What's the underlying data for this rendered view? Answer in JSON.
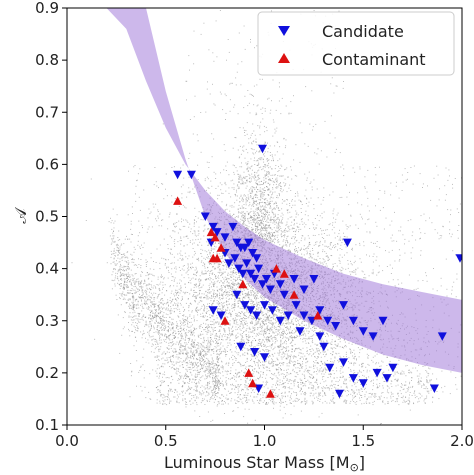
{
  "chart_data": {
    "type": "scatter",
    "xlabel": "Luminous Star Mass [M",
    "xlabel_sub": "⊙",
    "xlabel_end": "]",
    "ylabel": "𝒜",
    "xlim": [
      0.0,
      2.0
    ],
    "ylim": [
      0.1,
      0.9
    ],
    "x_ticks": [
      "0.0",
      "0.5",
      "1.0",
      "1.5",
      "2.0"
    ],
    "y_ticks": [
      "0.1",
      "0.2",
      "0.3",
      "0.4",
      "0.5",
      "0.6",
      "0.7",
      "0.8",
      "0.9"
    ],
    "legend_position": "top-right",
    "band": {
      "color": "#9b72d8",
      "upper": [
        [
          0.2,
          0.9
        ],
        [
          0.3,
          0.86
        ],
        [
          0.4,
          0.76
        ],
        [
          0.5,
          0.67
        ],
        [
          0.6,
          0.6
        ],
        [
          0.7,
          0.55
        ],
        [
          0.8,
          0.51
        ],
        [
          0.9,
          0.48
        ],
        [
          1.0,
          0.455
        ],
        [
          1.2,
          0.42
        ],
        [
          1.4,
          0.39
        ],
        [
          1.6,
          0.37
        ],
        [
          1.8,
          0.355
        ],
        [
          2.0,
          0.34
        ]
      ],
      "lower": [
        [
          0.4,
          0.9
        ],
        [
          0.5,
          0.74
        ],
        [
          0.6,
          0.61
        ],
        [
          0.7,
          0.5
        ],
        [
          0.8,
          0.43
        ],
        [
          0.9,
          0.38
        ],
        [
          1.0,
          0.345
        ],
        [
          1.2,
          0.3
        ],
        [
          1.4,
          0.265
        ],
        [
          1.6,
          0.235
        ],
        [
          1.8,
          0.215
        ],
        [
          2.0,
          0.2
        ]
      ]
    },
    "background_points_color": "#888888",
    "series": [
      {
        "name": "Candidate",
        "marker": "triangle-down",
        "color": "#1010dd",
        "points": [
          [
            0.56,
            0.58
          ],
          [
            0.63,
            0.58
          ],
          [
            0.99,
            0.63
          ],
          [
            0.7,
            0.5
          ],
          [
            0.74,
            0.48
          ],
          [
            0.73,
            0.45
          ],
          [
            0.76,
            0.47
          ],
          [
            0.8,
            0.46
          ],
          [
            0.84,
            0.48
          ],
          [
            0.86,
            0.45
          ],
          [
            0.88,
            0.44
          ],
          [
            0.9,
            0.44
          ],
          [
            0.92,
            0.45
          ],
          [
            0.94,
            0.43
          ],
          [
            0.96,
            0.42
          ],
          [
            0.8,
            0.43
          ],
          [
            0.82,
            0.41
          ],
          [
            0.85,
            0.42
          ],
          [
            0.87,
            0.4
          ],
          [
            0.89,
            0.39
          ],
          [
            0.91,
            0.41
          ],
          [
            0.93,
            0.39
          ],
          [
            0.95,
            0.38
          ],
          [
            0.97,
            0.4
          ],
          [
            0.99,
            0.37
          ],
          [
            1.01,
            0.38
          ],
          [
            1.03,
            0.36
          ],
          [
            1.05,
            0.39
          ],
          [
            1.08,
            0.37
          ],
          [
            1.1,
            0.35
          ],
          [
            1.15,
            0.38
          ],
          [
            1.2,
            0.36
          ],
          [
            1.25,
            0.38
          ],
          [
            1.42,
            0.45
          ],
          [
            1.99,
            0.42
          ],
          [
            0.86,
            0.35
          ],
          [
            0.9,
            0.33
          ],
          [
            0.93,
            0.32
          ],
          [
            0.96,
            0.31
          ],
          [
            1.0,
            0.33
          ],
          [
            1.04,
            0.32
          ],
          [
            1.08,
            0.3
          ],
          [
            1.12,
            0.31
          ],
          [
            1.16,
            0.33
          ],
          [
            1.2,
            0.31
          ],
          [
            1.24,
            0.3
          ],
          [
            1.28,
            0.32
          ],
          [
            1.32,
            0.3
          ],
          [
            1.36,
            0.29
          ],
          [
            1.4,
            0.33
          ],
          [
            1.45,
            0.3
          ],
          [
            1.5,
            0.28
          ],
          [
            1.55,
            0.27
          ],
          [
            1.6,
            0.3
          ],
          [
            1.9,
            0.27
          ],
          [
            0.74,
            0.32
          ],
          [
            0.78,
            0.31
          ],
          [
            0.88,
            0.25
          ],
          [
            0.95,
            0.24
          ],
          [
            1.0,
            0.23
          ],
          [
            1.3,
            0.25
          ],
          [
            1.33,
            0.21
          ],
          [
            1.4,
            0.22
          ],
          [
            1.45,
            0.19
          ],
          [
            1.5,
            0.18
          ],
          [
            1.57,
            0.2
          ],
          [
            1.62,
            0.19
          ],
          [
            1.65,
            0.21
          ],
          [
            1.86,
            0.17
          ],
          [
            0.97,
            0.17
          ],
          [
            1.38,
            0.16
          ],
          [
            1.28,
            0.27
          ],
          [
            1.18,
            0.28
          ]
        ]
      },
      {
        "name": "Contaminant",
        "marker": "triangle-up",
        "color": "#dd1111",
        "points": [
          [
            0.56,
            0.53
          ],
          [
            0.73,
            0.47
          ],
          [
            0.75,
            0.46
          ],
          [
            0.78,
            0.44
          ],
          [
            0.74,
            0.42
          ],
          [
            0.76,
            0.42
          ],
          [
            1.06,
            0.4
          ],
          [
            1.1,
            0.39
          ],
          [
            0.89,
            0.37
          ],
          [
            1.15,
            0.35
          ],
          [
            0.8,
            0.3
          ],
          [
            0.92,
            0.2
          ],
          [
            0.94,
            0.18
          ],
          [
            1.03,
            0.16
          ],
          [
            1.27,
            0.31
          ]
        ]
      }
    ]
  }
}
